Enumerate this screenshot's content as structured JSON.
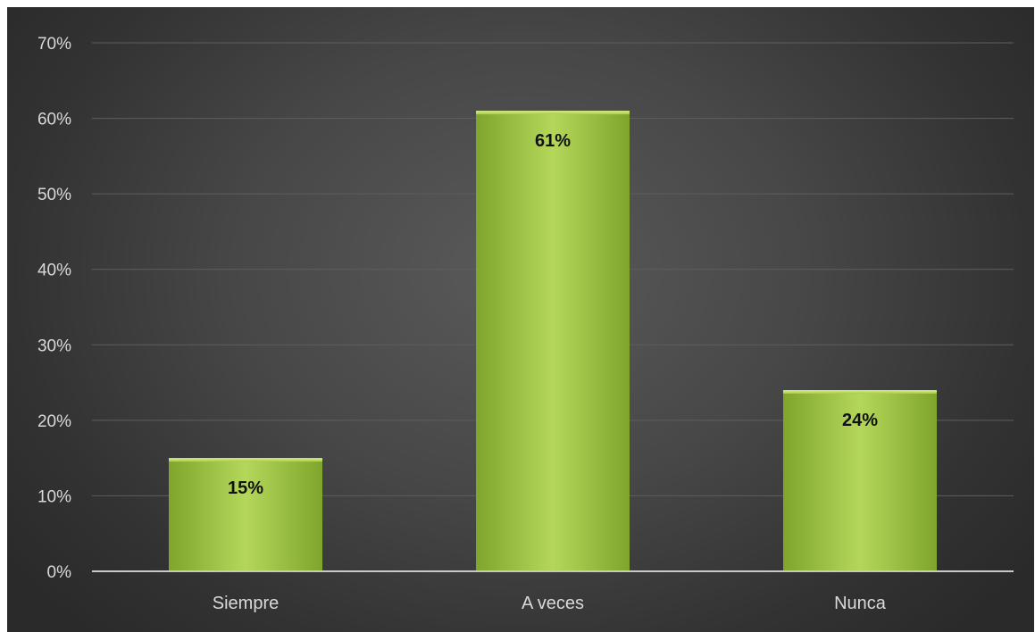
{
  "chart_data": {
    "type": "bar",
    "categories": [
      "Siempre",
      "A veces",
      "Nunca"
    ],
    "values": [
      15,
      61,
      24
    ],
    "data_labels": [
      "15%",
      "61%",
      "24%"
    ],
    "title": "",
    "xlabel": "",
    "ylabel": "",
    "ylim": [
      0,
      70
    ],
    "yticks": [
      0,
      10,
      20,
      30,
      40,
      50,
      60,
      70
    ],
    "ytick_labels": [
      "0%",
      "10%",
      "20%",
      "30%",
      "40%",
      "50%",
      "60%",
      "70%"
    ],
    "grid": true,
    "legend": "none",
    "colors": {
      "bar": "#9cc23c",
      "bar_light": "#b4d75a",
      "bar_dark": "#7fa52c",
      "background": "#474747",
      "label_text": "#d9d9d9",
      "data_label_text": "#111111"
    }
  }
}
